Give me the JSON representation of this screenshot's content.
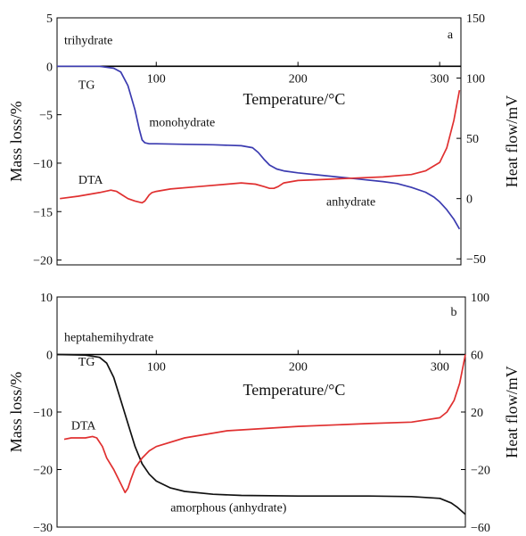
{
  "chart_data": [
    {
      "type": "line",
      "panel_label": "a",
      "xlabel": "Temperature/°C",
      "ylabel_left": "Mass loss/%",
      "ylabel_right": "Heat flow/mV",
      "xlim": [
        30,
        315
      ],
      "ylim_left": [
        -20.5,
        5
      ],
      "ylim_right": [
        -55,
        150
      ],
      "x_ticks": [
        100,
        200,
        300
      ],
      "y_left_ticks": [
        5,
        0,
        -5,
        -10,
        -15,
        -20
      ],
      "y_left_tick_labels": [
        "5",
        "0",
        "−5",
        "−10",
        "−15",
        "−20"
      ],
      "y_right_ticks": [
        150,
        100,
        50,
        0,
        -50
      ],
      "y_right_tick_labels": [
        "150",
        "100",
        "50",
        "0",
        "−50"
      ],
      "annotations": [
        {
          "text": "trihydrate",
          "x": 35,
          "y": 2.3,
          "axis": "left"
        },
        {
          "text": "TG",
          "x": 45,
          "y": -2.3,
          "axis": "left"
        },
        {
          "text": "monohydrate",
          "x": 95,
          "y": -6.2,
          "axis": "left"
        },
        {
          "text": "DTA",
          "x": 45,
          "y": -12.1,
          "axis": "left"
        },
        {
          "text": "anhydrate",
          "x": 220,
          "y": -14.4,
          "axis": "left"
        }
      ],
      "series": [
        {
          "name": "TG",
          "axis": "left",
          "color": "#3b3bb0",
          "x": [
            30,
            60,
            70,
            75,
            80,
            85,
            88,
            90,
            92,
            95,
            100,
            120,
            140,
            160,
            168,
            172,
            176,
            180,
            185,
            190,
            200,
            220,
            240,
            260,
            270,
            280,
            290,
            296,
            300,
            305,
            310,
            314
          ],
          "y": [
            0,
            0,
            -0.2,
            -0.6,
            -2.0,
            -4.5,
            -6.5,
            -7.6,
            -7.9,
            -8.0,
            -8.0,
            -8.05,
            -8.1,
            -8.2,
            -8.4,
            -8.9,
            -9.6,
            -10.2,
            -10.6,
            -10.8,
            -11.0,
            -11.3,
            -11.6,
            -11.9,
            -12.1,
            -12.5,
            -13.0,
            -13.5,
            -14.0,
            -14.8,
            -15.8,
            -16.8
          ]
        },
        {
          "name": "DTA",
          "axis": "right",
          "color": "#e03030",
          "x": [
            32,
            45,
            60,
            68,
            72,
            76,
            80,
            85,
            90,
            92,
            95,
            97,
            100,
            110,
            130,
            150,
            160,
            170,
            176,
            180,
            183,
            186,
            190,
            200,
            220,
            240,
            260,
            280,
            290,
            300,
            305,
            310,
            314
          ],
          "y": [
            0,
            2,
            5,
            7,
            6,
            3,
            0,
            -2,
            -3.5,
            -2,
            3,
            5,
            6,
            8,
            10,
            12,
            13,
            12,
            10,
            8.5,
            8.5,
            10,
            13,
            15,
            16,
            17,
            18,
            20,
            23,
            30,
            42,
            65,
            90
          ]
        }
      ]
    },
    {
      "type": "line",
      "panel_label": "b",
      "xlabel": "Temperature/°C",
      "ylabel_left": "Mass loss/%",
      "ylabel_right": "Heat flow/mV",
      "xlim": [
        30,
        318
      ],
      "ylim_left": [
        -30,
        10
      ],
      "ylim_right": [
        -60,
        100
      ],
      "x_ticks": [
        100,
        200,
        300
      ],
      "y_left_ticks": [
        10,
        0,
        -10,
        -20,
        -30
      ],
      "y_left_tick_labels": [
        "10",
        "0",
        "−10",
        "−20",
        "−30"
      ],
      "y_right_ticks": [
        100,
        60,
        20,
        -20,
        -60
      ],
      "y_right_tick_labels": [
        "100",
        "60",
        "20",
        "−20",
        "−60"
      ],
      "annotations": [
        {
          "text": "heptahemihydrate",
          "x": 35,
          "y": 2.3,
          "axis": "left"
        },
        {
          "text": "TG",
          "x": 45,
          "y": -1.9,
          "axis": "left"
        },
        {
          "text": "DTA",
          "x": 40,
          "y": -13,
          "axis": "left"
        },
        {
          "text": "amorphous (anhydrate)",
          "x": 110,
          "y": -27.3,
          "axis": "left"
        }
      ],
      "series": [
        {
          "name": "TG",
          "axis": "left",
          "color": "#111111",
          "x": [
            30,
            50,
            60,
            65,
            70,
            75,
            80,
            85,
            90,
            95,
            100,
            110,
            120,
            140,
            160,
            200,
            250,
            280,
            300,
            308,
            312,
            318
          ],
          "y": [
            0,
            -0.1,
            -0.5,
            -1.5,
            -4.0,
            -8.0,
            -12.0,
            -16.0,
            -19.0,
            -20.8,
            -22.0,
            -23.2,
            -23.8,
            -24.3,
            -24.5,
            -24.6,
            -24.6,
            -24.7,
            -25.0,
            -25.8,
            -26.5,
            -27.8
          ]
        },
        {
          "name": "DTA",
          "axis": "right",
          "color": "#e03030",
          "x": [
            35,
            40,
            50,
            55,
            58,
            62,
            65,
            70,
            75,
            78,
            80,
            82,
            85,
            90,
            95,
            100,
            120,
            150,
            200,
            250,
            280,
            300,
            305,
            310,
            314,
            318
          ],
          "y": [
            1,
            2,
            2,
            3,
            2,
            -4,
            -12,
            -20,
            -30,
            -36,
            -33,
            -27,
            -19,
            -12,
            -7,
            -4,
            2,
            7,
            10,
            12,
            13,
            16,
            20,
            28,
            40,
            60
          ]
        }
      ]
    }
  ]
}
